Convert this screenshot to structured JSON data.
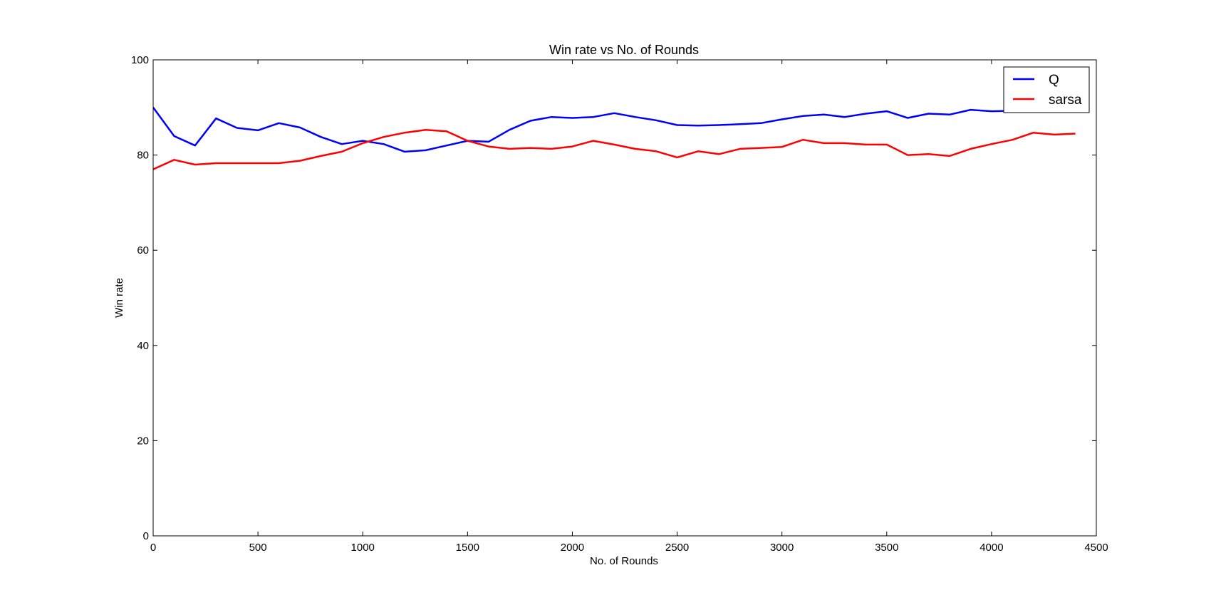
{
  "chart_data": {
    "type": "line",
    "title": "Win rate vs No. of Rounds",
    "xlabel": "No. of Rounds",
    "ylabel": "Win rate",
    "xlim": [
      0,
      4500
    ],
    "ylim": [
      0,
      100
    ],
    "xticks": [
      0,
      500,
      1000,
      1500,
      2000,
      2500,
      3000,
      3500,
      4000,
      4500
    ],
    "yticks": [
      0,
      20,
      40,
      60,
      80,
      100
    ],
    "grid": false,
    "legend_position": "top-right",
    "x": [
      0,
      100,
      200,
      300,
      400,
      500,
      600,
      700,
      800,
      900,
      1000,
      1100,
      1200,
      1300,
      1400,
      1500,
      1600,
      1700,
      1800,
      1900,
      2000,
      2100,
      2200,
      2300,
      2400,
      2500,
      2600,
      2700,
      2800,
      2900,
      3000,
      3100,
      3200,
      3300,
      3400,
      3500,
      3600,
      3700,
      3800,
      3900,
      4000,
      4100,
      4200,
      4300,
      4400
    ],
    "series": [
      {
        "name": "Q",
        "color": "#0000ff",
        "values": [
          90.0,
          84.0,
          82.0,
          87.7,
          85.7,
          85.2,
          86.7,
          85.8,
          83.8,
          82.3,
          83.0,
          82.3,
          80.7,
          81.0,
          82.0,
          83.0,
          82.8,
          85.3,
          87.2,
          88.0,
          87.8,
          88.0,
          88.8,
          88.0,
          87.3,
          86.3,
          86.2,
          86.3,
          86.5,
          86.7,
          87.5,
          88.2,
          88.5,
          88.0,
          88.7,
          89.2,
          87.8,
          88.7,
          88.5,
          89.5,
          89.2,
          89.3,
          89.5,
          89.5,
          89.5
        ]
      },
      {
        "name": "sarsa",
        "color": "#ff0000",
        "values": [
          77.0,
          79.0,
          78.0,
          78.3,
          78.3,
          78.3,
          78.3,
          78.8,
          79.8,
          80.7,
          82.5,
          83.8,
          84.7,
          85.3,
          85.0,
          83.0,
          81.8,
          81.3,
          81.5,
          81.3,
          81.8,
          83.0,
          82.2,
          81.3,
          80.8,
          79.5,
          80.8,
          80.2,
          81.3,
          81.5,
          81.7,
          83.2,
          82.5,
          82.5,
          82.2,
          82.2,
          80.0,
          80.2,
          79.8,
          81.3,
          82.3,
          83.2,
          84.7,
          84.3,
          84.5
        ]
      }
    ]
  }
}
